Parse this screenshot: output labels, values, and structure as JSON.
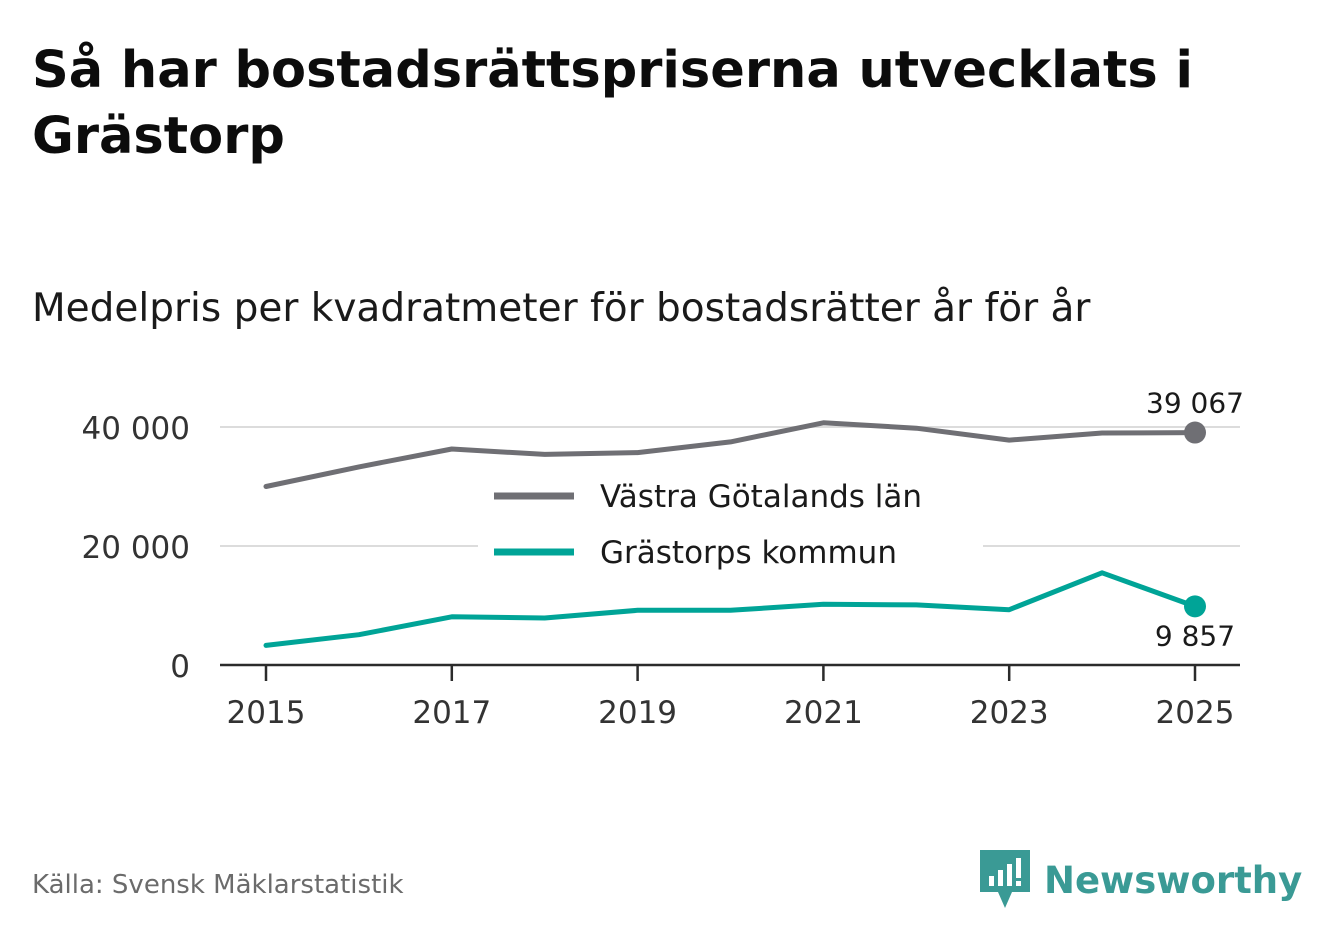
{
  "title": "Så har bostadsrättspriserna utvecklats i Grästorp",
  "subtitle": "Medelpris per kvadratmeter för bostadsrätter år för år",
  "source": "Källa: Svensk Mäklarstatistik",
  "brand": {
    "name": "Newsworthy",
    "icon": "newsworthy-logo-icon",
    "color": "#3a9a95"
  },
  "chart_data": {
    "type": "line",
    "x": [
      2015,
      2016,
      2017,
      2018,
      2019,
      2020,
      2021,
      2022,
      2023,
      2024,
      2025
    ],
    "x_ticks": [
      2015,
      2017,
      2019,
      2021,
      2023,
      2025
    ],
    "x_tick_labels": [
      "2015",
      "2017",
      "2019",
      "2021",
      "2023",
      "2025"
    ],
    "y_ticks": [
      0,
      20000,
      40000
    ],
    "y_tick_labels": [
      "0",
      "20 000",
      "40 000"
    ],
    "ylim": [
      0,
      40000
    ],
    "xlabel": "",
    "ylabel": "",
    "grid": true,
    "legend_position": "center",
    "series": [
      {
        "name": "Västra Götalands län",
        "color": "#6f6f74",
        "values": [
          30000,
          33300,
          36300,
          35400,
          35700,
          37500,
          40700,
          39800,
          37800,
          39000,
          39067
        ],
        "end_label": "39 067"
      },
      {
        "name": "Grästorps kommun",
        "color": "#00a497",
        "values": [
          3300,
          5100,
          8100,
          7900,
          9200,
          9200,
          10200,
          10100,
          9300,
          15500,
          9857
        ],
        "end_label": "9 857"
      }
    ]
  }
}
